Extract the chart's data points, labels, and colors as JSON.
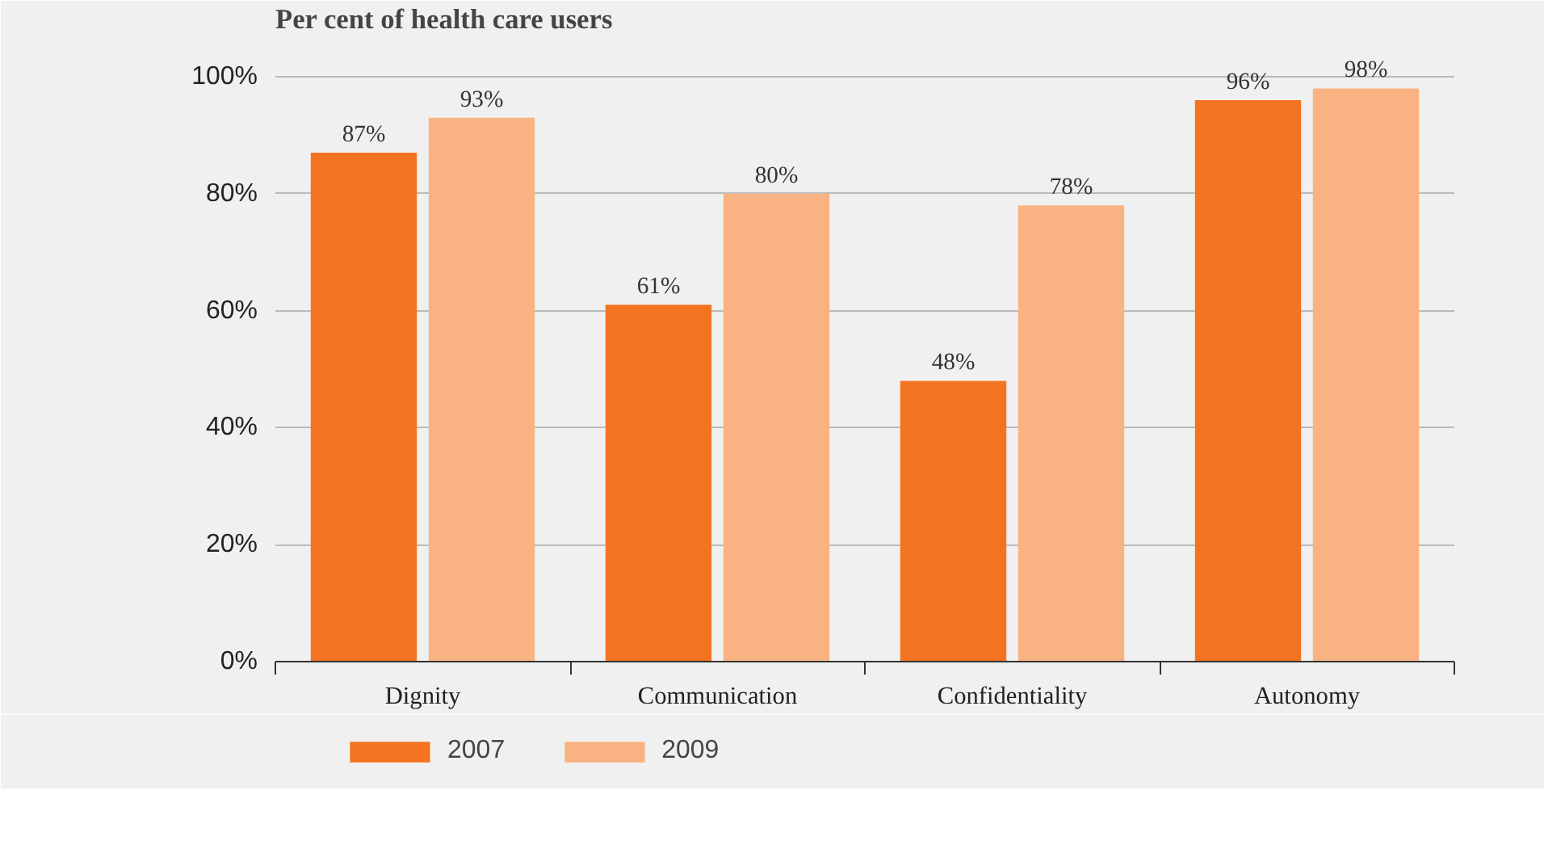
{
  "chart_data": {
    "type": "bar",
    "title": "Per cent of health care users",
    "categories": [
      "Dignity",
      "Communication",
      "Confidentiality",
      "Autonomy"
    ],
    "series": [
      {
        "name": "2007",
        "color": "#f47321",
        "values": [
          87,
          61,
          48,
          96
        ],
        "value_labels": [
          "87%",
          "61%",
          "48%",
          "96%"
        ]
      },
      {
        "name": "2009",
        "color": "#f9b383",
        "values": [
          93,
          80,
          78,
          98
        ],
        "value_labels": [
          "93%",
          "80%",
          "78%",
          "98%"
        ]
      }
    ],
    "ylim": [
      0,
      100
    ],
    "yticks": [
      {
        "value": 0,
        "label": "0%"
      },
      {
        "value": 20,
        "label": "20%"
      },
      {
        "value": 40,
        "label": "40%"
      },
      {
        "value": 60,
        "label": "60%"
      },
      {
        "value": 80,
        "label": "80%"
      },
      {
        "value": 100,
        "label": "100%"
      }
    ],
    "grid": "y",
    "legend": "bottom"
  }
}
